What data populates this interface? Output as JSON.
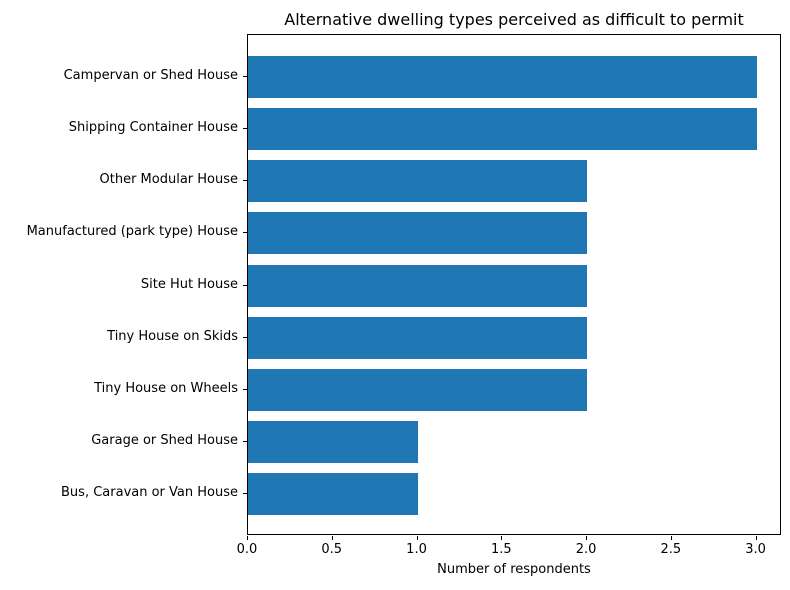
{
  "chart_data": {
    "type": "bar",
    "orientation": "horizontal",
    "title": "Alternative dwelling types perceived as difficult to permit",
    "xlabel": "Number of respondents",
    "ylabel": "",
    "categories": [
      "Campervan or Shed House",
      "Shipping Container House",
      "Other Modular House",
      "Manufactured (park type) House",
      "Site Hut House",
      "Tiny House on Skids",
      "Tiny House on Wheels",
      "Garage or Shed House",
      "Bus, Caravan or Van House"
    ],
    "values": [
      3,
      3,
      2,
      2,
      2,
      2,
      2,
      1,
      1
    ],
    "xlim": [
      0,
      3.15
    ],
    "xticks": [
      0.0,
      0.5,
      1.0,
      1.5,
      2.0,
      2.5,
      3.0
    ],
    "xtick_labels": [
      "0.0",
      "0.5",
      "1.0",
      "1.5",
      "2.0",
      "2.5",
      "3.0"
    ],
    "bar_color": "#1f77b4",
    "text_color": "#000000",
    "background_color": "#ffffff",
    "grid": false,
    "legend": null
  }
}
